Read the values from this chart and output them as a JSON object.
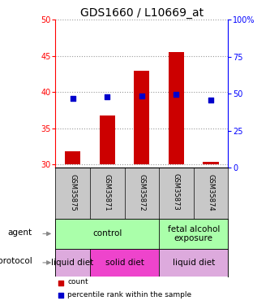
{
  "title": "GDS1660 / L10669_at",
  "samples": [
    "GSM35875",
    "GSM35871",
    "GSM35872",
    "GSM35873",
    "GSM35874"
  ],
  "count_values": [
    31.8,
    36.8,
    43.0,
    45.5,
    30.3
  ],
  "percentile_values": [
    47.0,
    48.0,
    48.5,
    49.5,
    46.0
  ],
  "ylim_left": [
    29.5,
    50
  ],
  "ylim_right": [
    0,
    100
  ],
  "yticks_left": [
    30,
    35,
    40,
    45,
    50
  ],
  "yticks_right": [
    0,
    25,
    50,
    75,
    100
  ],
  "ytick_labels_right": [
    "0",
    "25",
    "50",
    "75",
    "100%"
  ],
  "bar_color": "#cc0000",
  "dot_color": "#0000cc",
  "agent_groups": [
    {
      "label": "control",
      "span": [
        0,
        3
      ],
      "color": "#aaffaa"
    },
    {
      "label": "fetal alcohol\nexposure",
      "span": [
        3,
        5
      ],
      "color": "#aaffaa"
    }
  ],
  "protocol_groups": [
    {
      "label": "liquid diet",
      "span": [
        0,
        1
      ],
      "color": "#ddaadd"
    },
    {
      "label": "solid diet",
      "span": [
        1,
        3
      ],
      "color": "#ee44cc"
    },
    {
      "label": "liquid diet",
      "span": [
        3,
        5
      ],
      "color": "#ddaadd"
    }
  ],
  "agent_label": "agent",
  "protocol_label": "protocol",
  "legend_count": "count",
  "legend_percentile": "percentile rank within the sample",
  "bar_bottom": 30,
  "title_fontsize": 10,
  "tick_fontsize": 7,
  "sample_fontsize": 6,
  "annot_fontsize": 7.5,
  "group_fontsize": 7.5
}
